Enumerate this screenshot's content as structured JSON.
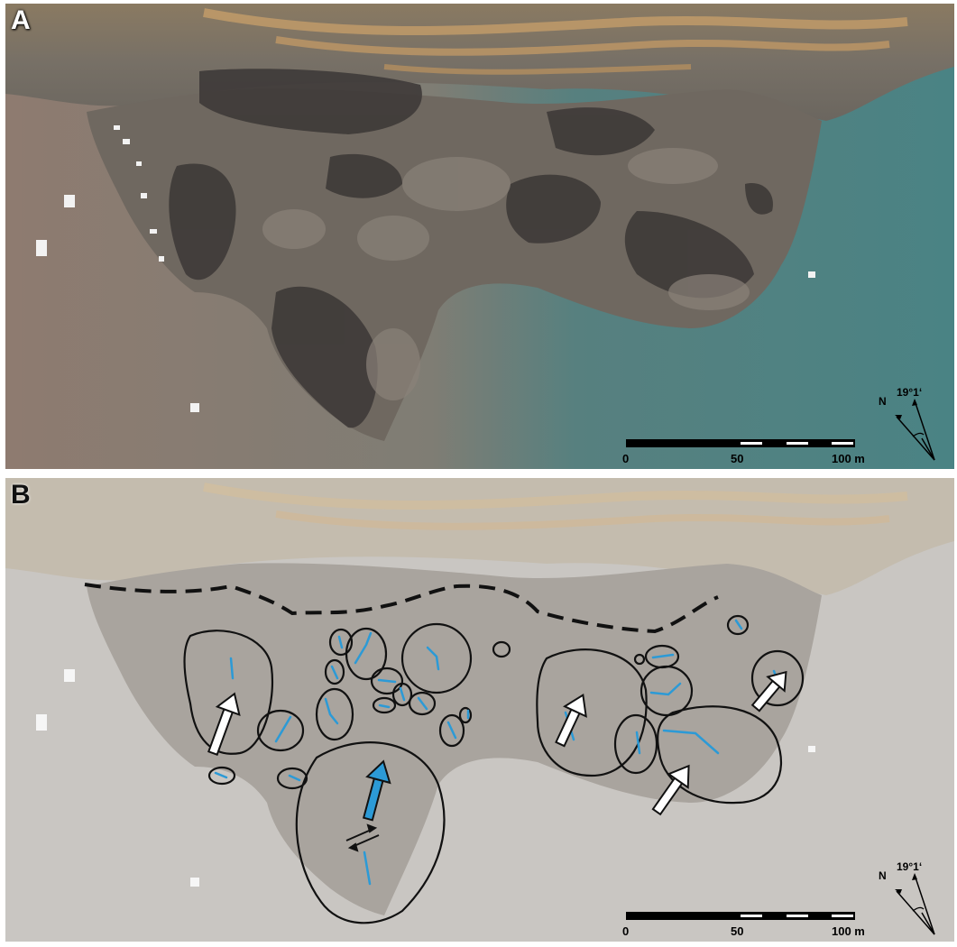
{
  "panels": [
    {
      "id": "a",
      "label": "A"
    },
    {
      "id": "b",
      "label": "B"
    }
  ],
  "scale_bar": {
    "ticks": [
      "0",
      "50",
      "100 m"
    ]
  },
  "north_arrow": {
    "north_label": "N",
    "angle_label": "19°1‘"
  },
  "colors": {
    "water_brown": "#8f7d71",
    "water_teal": "#4f8283",
    "rock_gray": "#6e675f",
    "overlay_fault_line": "#2c9ad6",
    "outline": "#111111"
  },
  "icons": [
    "north-arrow-icon",
    "flow-direction-arrow-icon",
    "strike-slip-symbol-icon"
  ]
}
